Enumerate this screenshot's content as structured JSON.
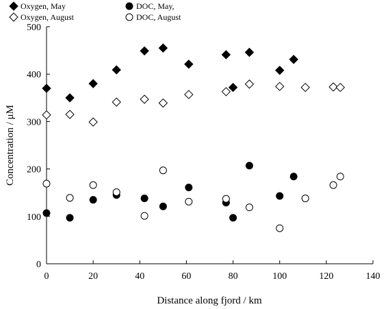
{
  "chart_data": {
    "type": "scatter",
    "title": "",
    "xlabel": "Distance along fjord / km",
    "ylabel": "Concentration / μM",
    "xlim": [
      0,
      140
    ],
    "ylim": [
      0,
      500
    ],
    "x_ticks": [
      0,
      20,
      40,
      60,
      80,
      100,
      120,
      140
    ],
    "y_ticks": [
      0,
      100,
      200,
      300,
      400,
      500
    ],
    "grid": false,
    "legend_position": "top-left",
    "series": [
      {
        "name": "Oxygen, May",
        "marker": "diamond-filled",
        "color": "#000000",
        "points": [
          [
            0,
            370
          ],
          [
            10,
            350
          ],
          [
            20,
            380
          ],
          [
            30,
            409
          ],
          [
            42,
            449
          ],
          [
            50,
            455
          ],
          [
            61,
            421
          ],
          [
            77,
            441
          ],
          [
            80,
            372
          ],
          [
            87,
            446
          ],
          [
            100,
            408
          ],
          [
            106,
            431
          ]
        ]
      },
      {
        "name": "DOC, May,",
        "marker": "circle-filled",
        "color": "#000000",
        "points": [
          [
            0,
            107
          ],
          [
            10,
            97
          ],
          [
            20,
            135
          ],
          [
            30,
            145
          ],
          [
            42,
            138
          ],
          [
            50,
            121
          ],
          [
            61,
            161
          ],
          [
            77,
            129
          ],
          [
            80,
            97
          ],
          [
            87,
            207
          ],
          [
            100,
            143
          ],
          [
            106,
            184
          ]
        ]
      },
      {
        "name": "Oxygen, August",
        "marker": "diamond-open",
        "color": "#000000",
        "points": [
          [
            0,
            314
          ],
          [
            10,
            315
          ],
          [
            20,
            299
          ],
          [
            30,
            341
          ],
          [
            42,
            347
          ],
          [
            50,
            339
          ],
          [
            61,
            357
          ],
          [
            77,
            363
          ],
          [
            87,
            379
          ],
          [
            100,
            374
          ],
          [
            111,
            372
          ],
          [
            123,
            373
          ],
          [
            126,
            372
          ]
        ]
      },
      {
        "name": "DOC, August",
        "marker": "circle-open",
        "color": "#000000",
        "points": [
          [
            0,
            169
          ],
          [
            10,
            139
          ],
          [
            20,
            166
          ],
          [
            30,
            151
          ],
          [
            42,
            101
          ],
          [
            50,
            197
          ],
          [
            61,
            131
          ],
          [
            77,
            137
          ],
          [
            87,
            119
          ],
          [
            100,
            75
          ],
          [
            111,
            138
          ],
          [
            123,
            166
          ],
          [
            126,
            184
          ]
        ]
      }
    ]
  }
}
